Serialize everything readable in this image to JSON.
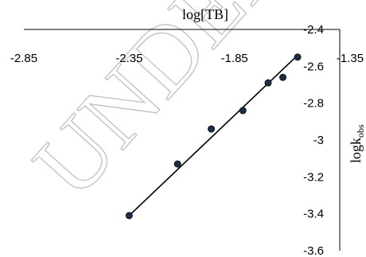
{
  "watermark": "UNDER",
  "chart_data": {
    "type": "scatter",
    "title": "",
    "xlabel": "log[TB]",
    "ylabel": "logk",
    "ylabel_subscript": "obs",
    "xlim": [
      -2.85,
      -1.35
    ],
    "ylim": [
      -3.6,
      -2.4
    ],
    "xticks": [
      "-2.85",
      "-2.35",
      "-1.85",
      "-1.35"
    ],
    "yticks": [
      "-2.4",
      "-2.6",
      "-2.8",
      "-3",
      "-3.2",
      "-3.4",
      "-3.6"
    ],
    "grid": false,
    "legend": "none",
    "marker_color": "#1f2d44",
    "series": [
      {
        "x": [
          -2.35,
          -2.12,
          -1.96,
          -1.81,
          -1.69,
          -1.62,
          -1.55
        ],
        "y": [
          -3.41,
          -3.13,
          -2.94,
          -2.84,
          -2.69,
          -2.66,
          -2.55
        ]
      }
    ],
    "trendline": {
      "type": "linear",
      "from": [
        -2.35,
        -3.41
      ],
      "to": [
        -1.55,
        -2.54
      ]
    }
  }
}
